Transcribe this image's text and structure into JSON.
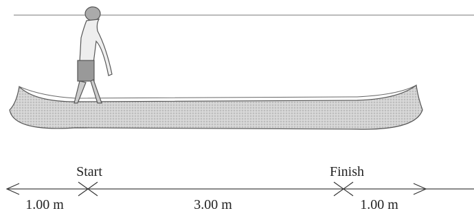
{
  "markers": {
    "start": "Start",
    "finish": "Finish"
  },
  "dimensions": {
    "left": "1.00 m",
    "middle": "3.00 m",
    "right": "1.00 m"
  }
}
